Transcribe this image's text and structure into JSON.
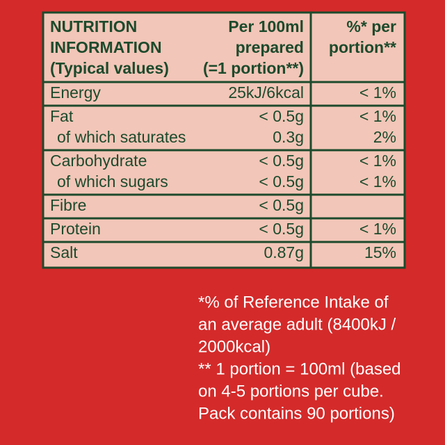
{
  "table": {
    "header": {
      "col1": [
        "NUTRITION",
        "INFORMATION",
        "(Typical values)"
      ],
      "col2": [
        "Per 100ml",
        "prepared",
        "(=1 portion**)"
      ],
      "col3": [
        "%* per",
        "portion**"
      ]
    },
    "groups": [
      {
        "rows": [
          [
            "Energy",
            "25kJ/6kcal",
            "< 1%"
          ]
        ]
      },
      {
        "rows": [
          [
            "Fat",
            "< 0.5g",
            "< 1%"
          ],
          [
            "of which saturates",
            "0.3g",
            "2%"
          ]
        ]
      },
      {
        "rows": [
          [
            "Carbohydrate",
            "< 0.5g",
            "< 1%"
          ],
          [
            "of which sugars",
            "< 0.5g",
            "< 1%"
          ]
        ]
      },
      {
        "rows": [
          [
            "Fibre",
            "< 0.5g"
          ]
        ]
      },
      {
        "rows": [
          [
            "Protein",
            "< 0.5g",
            "< 1%"
          ]
        ]
      },
      {
        "rows": [
          [
            "Salt",
            "0.87g",
            "15%"
          ]
        ]
      }
    ]
  },
  "footnote": [
    "*% of Reference Intake of",
    "an average adult (8400kJ /",
    "2000kcal)",
    "** 1 portion = 100ml (based",
    "on 4-5 portions per cube.",
    "Pack contains 90 portions)"
  ]
}
